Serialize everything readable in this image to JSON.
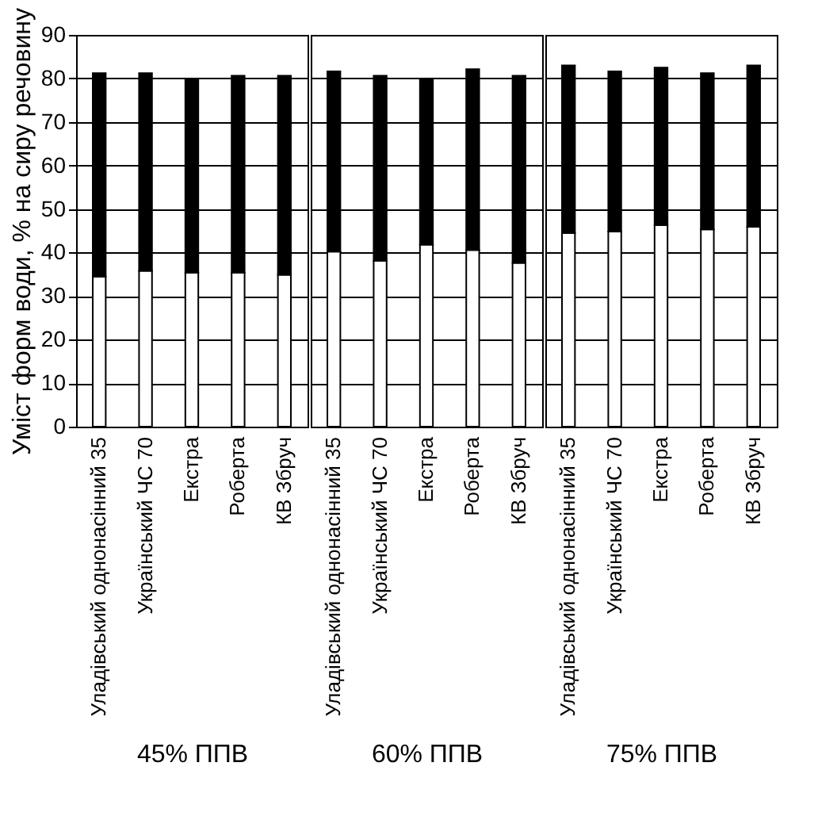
{
  "chart_data": [
    {
      "type": "bar",
      "stacked": true,
      "xlabel": "45% ППВ",
      "ylabel": "Уміст форм води, % на сиру речовину",
      "categories": [
        "Уладівський однонасінний 35",
        "Український ЧС 70",
        "Екстра",
        "Роберта",
        "КВ Збруч"
      ],
      "series": [
        {
          "color": "#ffffff",
          "values": [
            34.5,
            35.8,
            35.4,
            35.4,
            34.9
          ]
        },
        {
          "color": "#000000",
          "values": [
            46.7,
            45.4,
            44.6,
            45.2,
            45.7
          ]
        }
      ],
      "ylim": [
        0,
        90
      ],
      "yticks": [
        0,
        10,
        20,
        30,
        40,
        50,
        60,
        70,
        80,
        90
      ],
      "grid": "y"
    },
    {
      "type": "bar",
      "stacked": true,
      "xlabel": "60% ППВ",
      "categories": [
        "Уладівський однонасінний 35",
        "Український ЧС 70",
        "Екстра",
        "Роберта",
        "КВ Збруч"
      ],
      "series": [
        {
          "color": "#ffffff",
          "values": [
            40.2,
            38.1,
            41.8,
            40.6,
            37.6
          ]
        },
        {
          "color": "#000000",
          "values": [
            41.4,
            42.5,
            38.2,
            41.5,
            43.0
          ]
        }
      ],
      "ylim": [
        0,
        90
      ],
      "yticks": [
        0,
        10,
        20,
        30,
        40,
        50,
        60,
        70,
        80,
        90
      ],
      "grid": "y",
      "tick_labels": "x"
    },
    {
      "type": "bar",
      "stacked": true,
      "xlabel": "75% ППВ",
      "categories": [
        "Уладівський однонасінний 35",
        "Український ЧС 70",
        "Екстра",
        "Роберта",
        "КВ Збруч"
      ],
      "series": [
        {
          "color": "#ffffff",
          "values": [
            44.5,
            44.8,
            46.3,
            45.3,
            45.9
          ]
        },
        {
          "color": "#000000",
          "values": [
            38.5,
            36.8,
            36.2,
            35.9,
            37.1
          ]
        }
      ],
      "ylim": [
        0,
        90
      ],
      "yticks": [
        0,
        10,
        20,
        30,
        40,
        50,
        60,
        70,
        80,
        90
      ],
      "grid": "y",
      "tick_labels": "x"
    }
  ]
}
